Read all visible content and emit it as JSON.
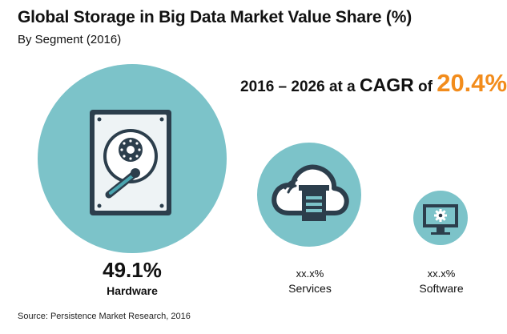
{
  "chart_data": {
    "type": "bubble",
    "title": "Global Storage in Big Data Market Value Share (%)",
    "subtitle": "By Segment (2016)",
    "annotation": {
      "text": "2016 – 2026 at a ",
      "text_big": "CAGR",
      "text_of": " of ",
      "value": "20.4%"
    },
    "categories": [
      "Hardware",
      "Services",
      "Software"
    ],
    "value_labels": [
      "49.1%",
      "xx.x%",
      "xx.x%"
    ],
    "values": [
      49.1,
      null,
      null
    ],
    "icons": [
      "hard-drive-icon",
      "cloud-server-icon",
      "monitor-gear-icon"
    ],
    "colors": {
      "bubble": "#7cc3c9",
      "icon_dark": "#2c3e4c",
      "icon_light": "#ffffff",
      "accent": "#f28c1c"
    },
    "source": "Source: Persistence Market Research, 2016"
  }
}
